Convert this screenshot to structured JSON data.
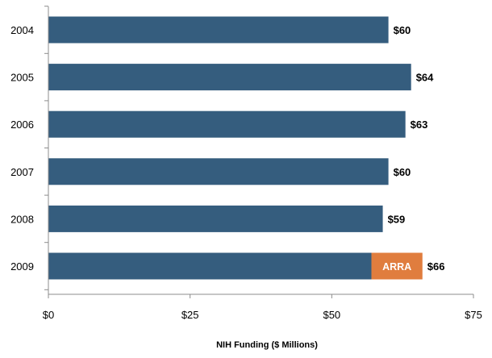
{
  "chart_data": {
    "type": "bar",
    "orientation": "horizontal",
    "stacked": true,
    "categories": [
      "2004",
      "2005",
      "2006",
      "2007",
      "2008",
      "2009"
    ],
    "series": [
      {
        "values": [
          60,
          64,
          63,
          60,
          59,
          57
        ],
        "color": "#355d7e"
      },
      {
        "name": "ARRA",
        "values": [
          0,
          0,
          0,
          0,
          0,
          9
        ],
        "color": "#e07d3e"
      }
    ],
    "data_labels": [
      "$60",
      "$64",
      "$63",
      "$60",
      "$59",
      "$66"
    ],
    "xlabel": "NIH Funding  ($ Millions)",
    "ylabel": "",
    "xlim": [
      0,
      75
    ],
    "ticks": [
      {
        "value": 0,
        "label": "$0"
      },
      {
        "value": 25,
        "label": "$25"
      },
      {
        "value": 50,
        "label": "$50"
      },
      {
        "value": 75,
        "label": "$75"
      }
    ],
    "grid": false,
    "legend": "none",
    "axis_color": "#8c8c8c"
  }
}
